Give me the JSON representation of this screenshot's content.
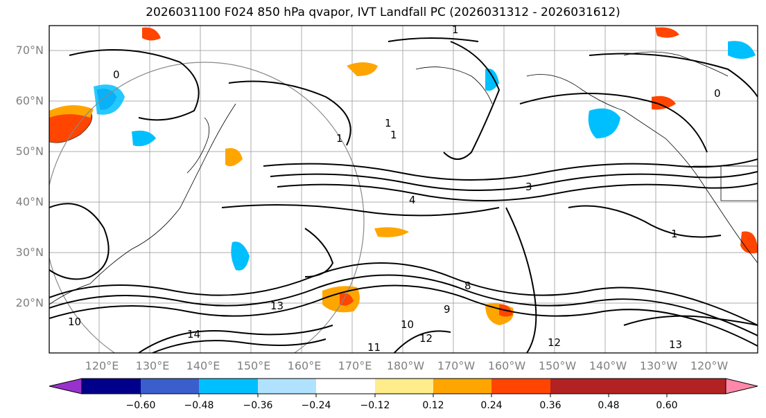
{
  "title": "2026031100 F024 850 hPa qvapor, IVT Landfall PC (2026031312 - 2026031612)",
  "lat_labels": [
    "70°N",
    "60°N",
    "50°N",
    "40°N",
    "30°N",
    "20°N"
  ],
  "lon_labels": [
    "120°E",
    "130°E",
    "140°E",
    "150°E",
    "160°E",
    "170°E",
    "180°W",
    "170°W",
    "160°W",
    "150°W",
    "140°W",
    "130°W",
    "120°W"
  ],
  "colorbar": {
    "colors": [
      "#9932cc",
      "#00008b",
      "#3a5fcd",
      "#00bfff",
      "#b0e2ff",
      "#ffffff",
      "#ffec8b",
      "#ffa500",
      "#ff4500",
      "#b22222",
      "#ff88aa"
    ],
    "tick_labels": [
      "−0.60",
      "−0.48",
      "−0.36",
      "−0.24",
      "−0.12",
      "0.12",
      "0.24",
      "0.36",
      "0.48",
      "0.60"
    ]
  },
  "contour_labels": [
    "0",
    "1",
    "1",
    "1",
    "1",
    "0",
    "3",
    "4",
    "8",
    "9",
    "10",
    "12",
    "13",
    "14",
    "11",
    "10",
    "12",
    "13",
    "1"
  ]
}
